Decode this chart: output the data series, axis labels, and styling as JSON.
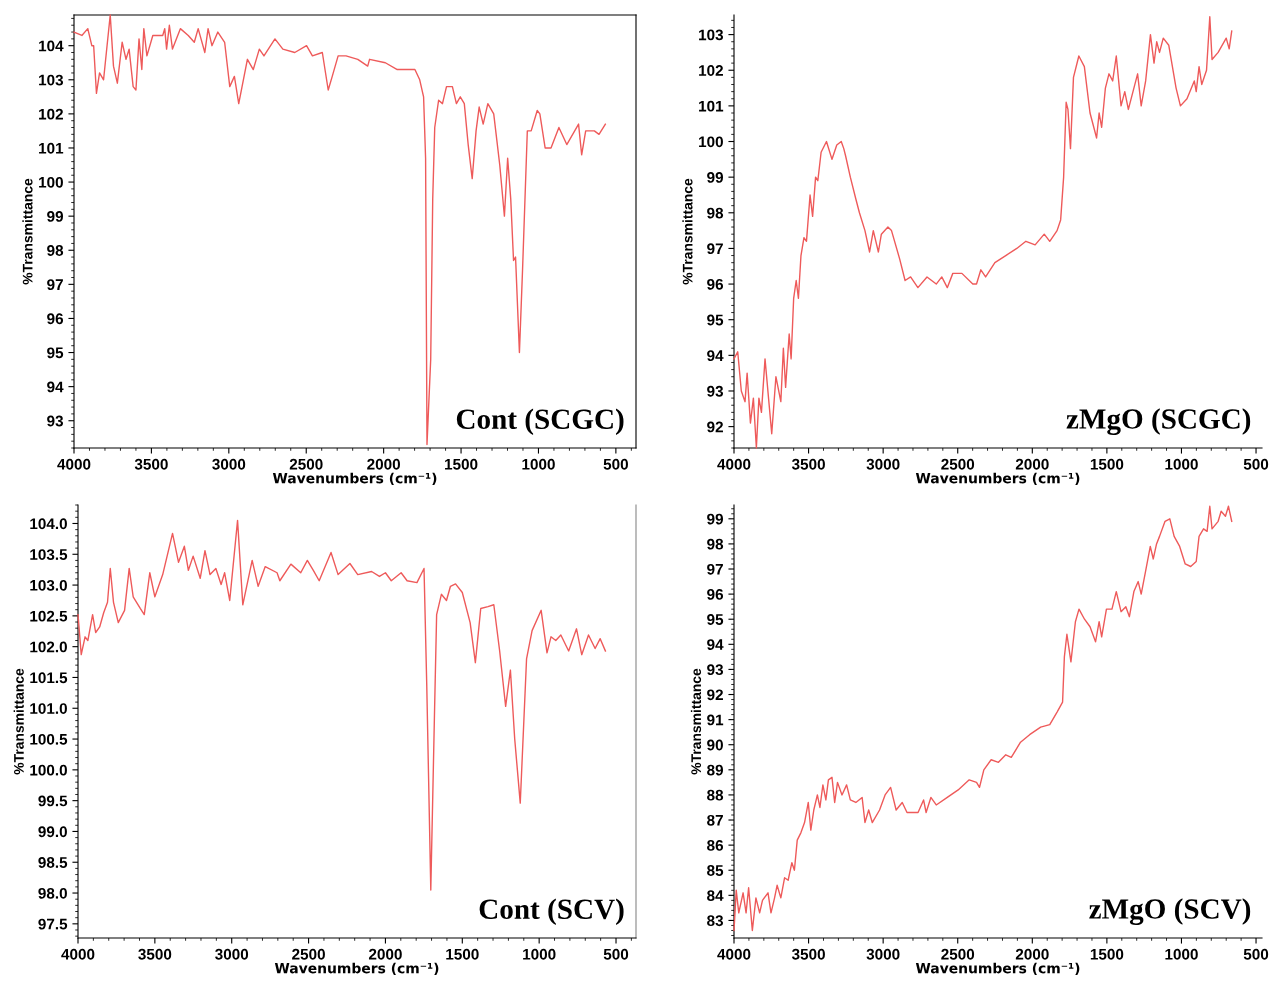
{
  "chart_data": [
    {
      "type": "line",
      "xlabel": "Wavenumbers (cm⁻¹)",
      "ylabel": "%Transmittance",
      "annotations": [
        "Cont (SCGC)"
      ],
      "xlim": [
        4000,
        370
      ],
      "xticks": [
        4000,
        3500,
        3000,
        2500,
        2000,
        1500,
        1000,
        500
      ],
      "ylim": [
        92.2,
        104.9
      ],
      "yticks": [
        93,
        94,
        95,
        96,
        97,
        98,
        99,
        100,
        101,
        102,
        103,
        104
      ],
      "series": [
        {
          "color": "#ee5a5a",
          "x": [
            4000,
            3949,
            3911,
            3885,
            3873,
            3855,
            3835,
            3809,
            3791,
            3766,
            3745,
            3720,
            3689,
            3664,
            3644,
            3618,
            3600,
            3580,
            3562,
            3549,
            3529,
            3491,
            3427,
            3414,
            3402,
            3384,
            3364,
            3313,
            3262,
            3223,
            3198,
            3155,
            3134,
            3109,
            3071,
            3027,
            2994,
            2964,
            2936,
            2880,
            2842,
            2803,
            2773,
            2702,
            2651,
            2574,
            2498,
            2460,
            2396,
            2358,
            2332,
            2294,
            2243,
            2167,
            2103,
            2091,
            1989,
            1912,
            1836,
            1798,
            1767,
            1742,
            1729,
            1720,
            1696,
            1683,
            1670,
            1645,
            1620,
            1594,
            1556,
            1530,
            1505,
            1479,
            1454,
            1428,
            1403,
            1383,
            1357,
            1327,
            1289,
            1250,
            1220,
            1199,
            1179,
            1161,
            1148,
            1123,
            1103,
            1072,
            1047,
            1008,
            991,
            957,
            919,
            868,
            817,
            779,
            741,
            721,
            695,
            639,
            609,
            568
          ],
          "values": [
            104.4,
            104.3,
            104.5,
            104.0,
            104.0,
            102.6,
            103.2,
            103.0,
            103.8,
            104.9,
            103.4,
            102.9,
            104.1,
            103.6,
            103.9,
            102.8,
            102.7,
            104.2,
            103.3,
            104.5,
            103.7,
            104.3,
            104.3,
            104.5,
            103.9,
            104.6,
            103.9,
            104.5,
            104.3,
            104.1,
            104.5,
            103.8,
            104.5,
            104.0,
            104.4,
            104.1,
            102.8,
            103.1,
            102.3,
            103.6,
            103.3,
            103.9,
            103.7,
            104.2,
            103.9,
            103.8,
            104.0,
            103.7,
            103.8,
            102.7,
            103.1,
            103.7,
            103.7,
            103.6,
            103.4,
            103.6,
            103.5,
            103.3,
            103.3,
            103.3,
            103.0,
            102.5,
            100.7,
            92.3,
            94.8,
            99.5,
            101.6,
            102.4,
            102.3,
            102.8,
            102.8,
            102.3,
            102.5,
            102.3,
            101.1,
            100.1,
            101.5,
            102.2,
            101.7,
            102.3,
            102.0,
            100.5,
            99.0,
            100.7,
            99.5,
            97.7,
            97.8,
            95.0,
            97.4,
            101.5,
            101.5,
            102.1,
            102.0,
            101.0,
            101.0,
            101.6,
            101.1,
            101.4,
            101.7,
            100.8,
            101.5,
            101.5,
            101.4,
            101.7
          ]
        }
      ]
    },
    {
      "type": "line",
      "xlabel": "Wavenumbers (cm⁻¹)",
      "ylabel": "%Transmittance",
      "annotations": [
        "zMgO (SCGC)"
      ],
      "xlim": [
        4000,
        460
      ],
      "xticks": [
        4000,
        3500,
        3000,
        2500,
        2000,
        1500,
        1000,
        500
      ],
      "ylim": [
        91.4,
        103.55
      ],
      "yticks": [
        92,
        93,
        94,
        95,
        96,
        97,
        98,
        99,
        100,
        101,
        102,
        103
      ],
      "series": [
        {
          "color": "#ee5a5a",
          "x": [
            4000,
            3975,
            3951,
            3926,
            3912,
            3890,
            3870,
            3850,
            3833,
            3816,
            3792,
            3747,
            3719,
            3686,
            3669,
            3654,
            3630,
            3617,
            3600,
            3583,
            3568,
            3551,
            3531,
            3514,
            3490,
            3473,
            3453,
            3438,
            3416,
            3380,
            3343,
            3311,
            3281,
            3264,
            3252,
            3220,
            3184,
            3159,
            3122,
            3091,
            3066,
            3032,
            3012,
            2968,
            2944,
            2889,
            2853,
            2816,
            2767,
            2706,
            2644,
            2607,
            2570,
            2533,
            2472,
            2399,
            2374,
            2345,
            2313,
            2251,
            2178,
            2104,
            2043,
            1981,
            1920,
            1883,
            1834,
            1810,
            1790,
            1773,
            1761,
            1744,
            1724,
            1688,
            1651,
            1613,
            1569,
            1552,
            1535,
            1510,
            1486,
            1461,
            1437,
            1405,
            1380,
            1356,
            1294,
            1270,
            1240,
            1208,
            1184,
            1166,
            1147,
            1122,
            1085,
            1036,
            1007,
            963,
            914,
            901,
            882,
            864,
            832,
            810,
            795,
            754,
            700,
            680,
            663
          ],
          "values": [
            93.9,
            94.1,
            93.0,
            92.7,
            93.5,
            92.1,
            92.8,
            91.4,
            92.8,
            92.4,
            93.9,
            91.8,
            93.4,
            92.7,
            94.2,
            93.1,
            94.6,
            93.9,
            95.6,
            96.1,
            95.6,
            96.8,
            97.3,
            97.2,
            98.5,
            97.9,
            99.0,
            98.9,
            99.7,
            100.0,
            99.5,
            99.9,
            100.0,
            99.8,
            99.6,
            99.0,
            98.4,
            98.0,
            97.5,
            96.9,
            97.5,
            96.9,
            97.4,
            97.6,
            97.5,
            96.7,
            96.1,
            96.2,
            95.9,
            96.2,
            96.0,
            96.2,
            95.9,
            96.3,
            96.3,
            96.0,
            96.0,
            96.4,
            96.2,
            96.6,
            96.8,
            97.0,
            97.2,
            97.1,
            97.4,
            97.2,
            97.5,
            97.8,
            99.0,
            101.1,
            100.9,
            99.8,
            101.8,
            102.4,
            102.1,
            100.8,
            100.1,
            100.8,
            100.4,
            101.5,
            101.9,
            101.7,
            102.4,
            101.0,
            101.4,
            100.9,
            101.9,
            101.0,
            101.7,
            103.0,
            102.2,
            102.8,
            102.5,
            102.9,
            102.7,
            101.5,
            101.0,
            101.2,
            101.7,
            101.4,
            102.1,
            101.6,
            102.0,
            103.5,
            102.3,
            102.5,
            102.9,
            102.6,
            103.1
          ]
        }
      ]
    },
    {
      "type": "line",
      "xlabel": "Wavenumbers (cm⁻¹)",
      "ylabel": "%Transmittance",
      "annotations": [
        "Cont (SCV)"
      ],
      "xlim": [
        4000,
        370
      ],
      "xticks": [
        4000,
        3500,
        3000,
        2500,
        2000,
        1500,
        1000,
        500
      ],
      "ylim": [
        97.27,
        104.3
      ],
      "yticks": [
        {
          "value": 97.5,
          "label": "97.5"
        },
        {
          "value": 98,
          "label": "98.0"
        },
        {
          "value": 98.5,
          "label": "98.5"
        },
        {
          "value": 99,
          "label": "99.0"
        },
        {
          "value": 99.5,
          "label": "99.5"
        },
        {
          "value": 100,
          "label": "100.0"
        },
        {
          "value": 100.5,
          "label": "100.5"
        },
        {
          "value": 101,
          "label": "101.0"
        },
        {
          "value": 101.5,
          "label": "101.5"
        },
        {
          "value": 102,
          "label": "102.0"
        },
        {
          "value": 102.5,
          "label": "102.5"
        },
        {
          "value": 103,
          "label": "103.0"
        },
        {
          "value": 103.5,
          "label": "103.5"
        },
        {
          "value": 104,
          "label": "104.0"
        }
      ],
      "series": [
        {
          "color": "#ee5a5a",
          "x": [
            4000,
            3979,
            3954,
            3936,
            3905,
            3885,
            3859,
            3833,
            3808,
            3790,
            3769,
            3738,
            3697,
            3667,
            3641,
            3595,
            3569,
            3533,
            3500,
            3449,
            3385,
            3346,
            3308,
            3282,
            3251,
            3205,
            3174,
            3141,
            3103,
            3069,
            3046,
            3013,
            2962,
            2928,
            2867,
            2828,
            2782,
            2705,
            2687,
            2615,
            2551,
            2508,
            2469,
            2431,
            2354,
            2308,
            2231,
            2180,
            2090,
            2039,
            2000,
            1962,
            1898,
            1859,
            1795,
            1749,
            1731,
            1705,
            1680,
            1667,
            1636,
            1603,
            1577,
            1544,
            1500,
            1449,
            1415,
            1380,
            1333,
            1295,
            1257,
            1218,
            1187,
            1159,
            1123,
            1082,
            1046,
            987,
            949,
            923,
            892,
            859,
            808,
            757,
            723,
            679,
            636,
            603,
            569
          ],
          "values": [
            102.52,
            101.87,
            102.16,
            102.1,
            102.52,
            102.23,
            102.32,
            102.55,
            102.72,
            103.27,
            102.72,
            102.39,
            102.59,
            103.27,
            102.81,
            102.62,
            102.52,
            103.2,
            102.81,
            103.17,
            103.84,
            103.37,
            103.63,
            103.24,
            103.47,
            103.11,
            103.56,
            103.17,
            103.27,
            103.01,
            103.2,
            102.75,
            104.05,
            102.68,
            103.4,
            102.98,
            103.3,
            103.2,
            103.07,
            103.34,
            103.2,
            103.4,
            103.24,
            103.07,
            103.53,
            103.17,
            103.35,
            103.17,
            103.22,
            103.14,
            103.2,
            103.07,
            103.2,
            103.07,
            103.04,
            103.27,
            101.35,
            98.05,
            101.02,
            102.52,
            102.85,
            102.75,
            102.98,
            103.02,
            102.88,
            102.39,
            101.74,
            102.62,
            102.65,
            102.68,
            101.93,
            101.03,
            101.62,
            100.5,
            99.46,
            101.8,
            102.26,
            102.59,
            101.9,
            102.16,
            102.1,
            102.19,
            101.93,
            102.29,
            101.87,
            102.19,
            101.97,
            102.13,
            101.93
          ]
        }
      ]
    },
    {
      "type": "line",
      "xlabel": "Wavenumbers (cm⁻¹)",
      "ylabel": "%Transmittance",
      "annotations": [
        "zMgO (SCV)"
      ],
      "xlim": [
        4000,
        460
      ],
      "xticks": [
        4000,
        3500,
        3000,
        2500,
        2000,
        1500,
        1000,
        500
      ],
      "ylim": [
        82.3,
        99.55
      ],
      "yticks": [
        83,
        84,
        85,
        86,
        87,
        88,
        89,
        90,
        91,
        92,
        93,
        94,
        95,
        96,
        97,
        98,
        99
      ],
      "series": [
        {
          "color": "#ee5a5a",
          "x": [
            4000,
            3985,
            3968,
            3939,
            3919,
            3902,
            3877,
            3853,
            3828,
            3809,
            3772,
            3752,
            3728,
            3711,
            3686,
            3661,
            3637,
            3612,
            3595,
            3576,
            3551,
            3527,
            3502,
            3485,
            3465,
            3441,
            3424,
            3404,
            3384,
            3367,
            3343,
            3325,
            3306,
            3276,
            3245,
            3220,
            3183,
            3141,
            3122,
            3097,
            3073,
            3024,
            2987,
            2950,
            2913,
            2872,
            2840,
            2766,
            2729,
            2712,
            2680,
            2644,
            2570,
            2497,
            2423,
            2374,
            2354,
            2325,
            2276,
            2227,
            2178,
            2141,
            2079,
            2018,
            1944,
            1883,
            1834,
            1797,
            1785,
            1768,
            1741,
            1711,
            1687,
            1650,
            1613,
            1576,
            1552,
            1535,
            1503,
            1466,
            1437,
            1405,
            1373,
            1349,
            1319,
            1290,
            1270,
            1241,
            1209,
            1189,
            1167,
            1147,
            1110,
            1078,
            1049,
            1012,
            975,
            938,
            901,
            882,
            852,
            828,
            810,
            795,
            754,
            734,
            705,
            685,
            663
          ],
          "values": [
            82.6,
            84.2,
            83.3,
            84.1,
            83.3,
            84.3,
            82.6,
            83.9,
            83.3,
            83.8,
            84.1,
            83.3,
            83.9,
            84.4,
            83.9,
            84.7,
            84.6,
            85.3,
            85.0,
            86.2,
            86.5,
            86.9,
            87.7,
            86.6,
            87.4,
            88.0,
            87.5,
            88.4,
            87.8,
            88.6,
            88.7,
            87.7,
            88.5,
            88.0,
            88.4,
            87.8,
            87.7,
            87.9,
            86.9,
            87.4,
            86.9,
            87.4,
            88.0,
            88.3,
            87.4,
            87.7,
            87.3,
            87.3,
            87.8,
            87.3,
            87.9,
            87.6,
            87.9,
            88.2,
            88.6,
            88.5,
            88.3,
            89.0,
            89.4,
            89.3,
            89.6,
            89.5,
            90.1,
            90.4,
            90.7,
            90.8,
            91.3,
            91.7,
            93.5,
            94.4,
            93.3,
            94.9,
            95.4,
            95.0,
            94.7,
            94.1,
            94.9,
            94.3,
            95.4,
            95.4,
            96.1,
            95.3,
            95.5,
            95.1,
            96.1,
            96.5,
            96.0,
            96.9,
            97.9,
            97.4,
            98.0,
            98.3,
            98.9,
            99.0,
            98.3,
            97.9,
            97.2,
            97.1,
            97.3,
            98.3,
            98.6,
            98.5,
            99.5,
            98.6,
            98.9,
            99.3,
            99.1,
            99.5,
            98.9
          ]
        }
      ]
    }
  ]
}
